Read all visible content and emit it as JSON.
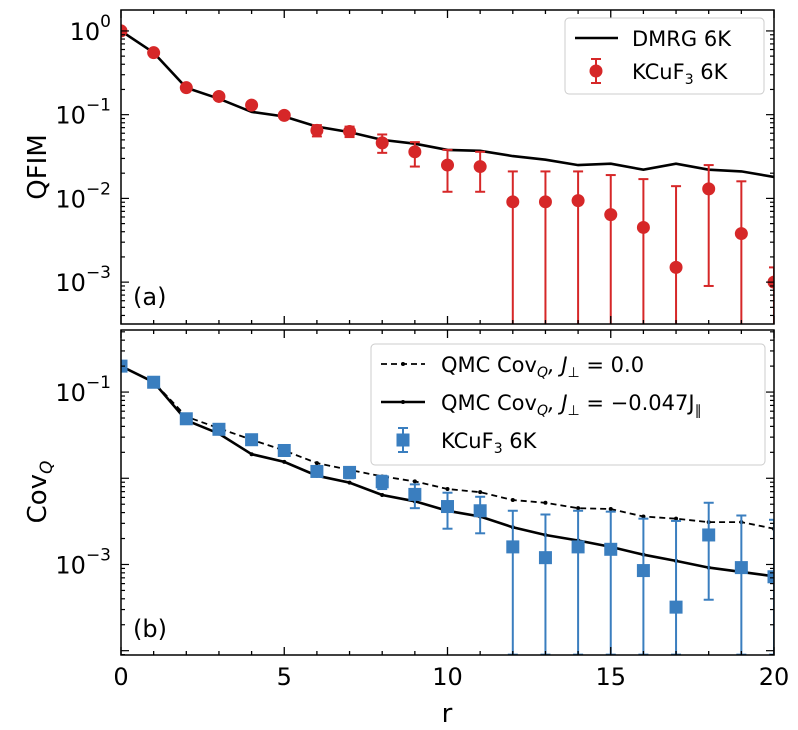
{
  "chart_data": [
    {
      "type": "line",
      "panel_label": "(a)",
      "ylabel": "QFIM",
      "xlabel": "",
      "xlim": [
        0,
        20
      ],
      "ylim_log10": [
        -3.5,
        0.25
      ],
      "y_scale": "log",
      "ytick_labels": [
        {
          "mantissa": "10",
          "exp": "0",
          "log": 0
        },
        {
          "mantissa": "10",
          "exp": "−1",
          "log": -1
        },
        {
          "mantissa": "10",
          "exp": "−2",
          "log": -2
        },
        {
          "mantissa": "10",
          "exp": "−3",
          "log": -3
        }
      ],
      "legend": {
        "placement": "top-right",
        "entries": [
          {
            "label": "DMRG 6K"
          },
          {
            "label": "KCuF",
            "sub": "3",
            "suffix": " 6K"
          }
        ]
      },
      "series": [
        {
          "name": "DMRG 6K",
          "kind": "line",
          "color": "#000000",
          "x": [
            0,
            1,
            2,
            3,
            4,
            5,
            6,
            7,
            8,
            9,
            10,
            11,
            12,
            13,
            14,
            15,
            16,
            17,
            18,
            19,
            20
          ],
          "y": [
            1.0,
            0.55,
            0.21,
            0.155,
            0.108,
            0.095,
            0.072,
            0.062,
            0.05,
            0.045,
            0.038,
            0.037,
            0.032,
            0.029,
            0.025,
            0.026,
            0.022,
            0.026,
            0.022,
            0.021,
            0.018
          ]
        },
        {
          "name": "KCuF3 6K",
          "kind": "errorbar",
          "marker": "circle",
          "color": "#d62728",
          "x": [
            0,
            1,
            2,
            3,
            4,
            5,
            6,
            7,
            8,
            9,
            10,
            11,
            12,
            13,
            14,
            15,
            16,
            17,
            18,
            19,
            20
          ],
          "y": [
            1.0,
            0.55,
            0.21,
            0.165,
            0.13,
            0.098,
            0.065,
            0.063,
            0.046,
            0.036,
            0.025,
            0.024,
            0.0091,
            0.0091,
            0.0094,
            0.0064,
            0.0045,
            0.0015,
            0.013,
            0.0038,
            0.001
          ],
          "ylo": [
            1.0,
            0.55,
            0.21,
            0.165,
            0.13,
            0.098,
            0.055,
            0.054,
            0.035,
            0.024,
            0.012,
            0.012,
            0.0001,
            0.0001,
            0.0001,
            0.0001,
            0.0001,
            0.0001,
            0.0009,
            0.0001,
            0.0001
          ],
          "yhi": [
            1.0,
            0.55,
            0.21,
            0.165,
            0.13,
            0.098,
            0.075,
            0.072,
            0.058,
            0.047,
            0.038,
            0.036,
            0.021,
            0.021,
            0.021,
            0.019,
            0.017,
            0.014,
            0.025,
            0.016,
            0.0015
          ]
        }
      ]
    },
    {
      "type": "line",
      "panel_label": "(b)",
      "ylabel": "Cov",
      "ylabel_sub": "Q",
      "xlabel": "r",
      "xlim": [
        0,
        20
      ],
      "ylim_log10": [
        -4.05,
        -0.28
      ],
      "y_scale": "log",
      "xtick_labels": [
        "0",
        "5",
        "10",
        "15",
        "20"
      ],
      "ytick_labels": [
        {
          "mantissa": "10",
          "exp": "−1",
          "log": -1
        },
        {
          "mantissa": "10",
          "exp": "−3",
          "log": -3
        }
      ],
      "legend": {
        "placement": "top-right",
        "entries": [
          {
            "label": "QMC Cov",
            "sub": "Q",
            "suffix": ", J",
            "sub2": "⊥",
            "suffix2": " = 0.0"
          },
          {
            "label": "QMC Cov",
            "sub": "Q",
            "suffix": ", J",
            "sub2": "⊥",
            "suffix2": " = −0.047J",
            "sub3": "∥"
          },
          {
            "label": "KCuF",
            "sub": "3",
            "suffix": " 6K"
          }
        ]
      },
      "series": [
        {
          "name": "QMC CovQ, J⊥ = 0.0",
          "kind": "dashed-line",
          "color": "#000000",
          "x": [
            0,
            1,
            2,
            3,
            4,
            5,
            6,
            7,
            8,
            9,
            10,
            11,
            12,
            13,
            14,
            15,
            16,
            17,
            18,
            19,
            20
          ],
          "y": [
            0.2,
            0.13,
            0.052,
            0.038,
            0.028,
            0.021,
            0.015,
            0.0125,
            0.0105,
            0.0092,
            0.0075,
            0.0069,
            0.0056,
            0.0052,
            0.0045,
            0.0044,
            0.0036,
            0.0034,
            0.0031,
            0.0031,
            0.0026
          ]
        },
        {
          "name": "QMC CovQ, J⊥ = −0.047J∥",
          "kind": "line",
          "color": "#000000",
          "x": [
            0,
            1,
            2,
            3,
            4,
            5,
            6,
            7,
            8,
            9,
            10,
            11,
            12,
            13,
            14,
            15,
            16,
            17,
            18,
            19,
            20
          ],
          "y": [
            0.2,
            0.13,
            0.047,
            0.033,
            0.019,
            0.0155,
            0.0107,
            0.0089,
            0.0064,
            0.0054,
            0.0042,
            0.0036,
            0.0027,
            0.0022,
            0.0019,
            0.0016,
            0.0013,
            0.0011,
            0.00092,
            0.00082,
            0.00073
          ]
        },
        {
          "name": "KCuF3 6K",
          "kind": "errorbar",
          "marker": "square",
          "color": "#3a7ebf",
          "x": [
            0,
            1,
            2,
            3,
            4,
            5,
            6,
            7,
            8,
            9,
            10,
            11,
            12,
            13,
            14,
            15,
            16,
            17,
            18,
            19,
            20
          ],
          "y": [
            0.2,
            0.13,
            0.049,
            0.037,
            0.028,
            0.021,
            0.012,
            0.0117,
            0.0091,
            0.0065,
            0.0047,
            0.0042,
            0.0016,
            0.0012,
            0.0016,
            0.0015,
            0.00085,
            0.00032,
            0.0022,
            0.00092,
            0.00072
          ],
          "ylo": [
            0.2,
            0.13,
            0.049,
            0.037,
            0.028,
            0.021,
            0.0105,
            0.01,
            0.0075,
            0.0045,
            0.0026,
            0.0023,
            9e-05,
            9e-05,
            9e-05,
            9e-05,
            9e-05,
            9e-05,
            0.00039,
            9e-05,
            9e-05
          ],
          "yhi": [
            0.2,
            0.13,
            0.049,
            0.037,
            0.028,
            0.021,
            0.0135,
            0.0134,
            0.0107,
            0.0085,
            0.0068,
            0.0061,
            0.0042,
            0.0038,
            0.0042,
            0.0041,
            0.0034,
            0.0032,
            0.0052,
            0.0037,
            0.0033
          ]
        }
      ]
    }
  ]
}
